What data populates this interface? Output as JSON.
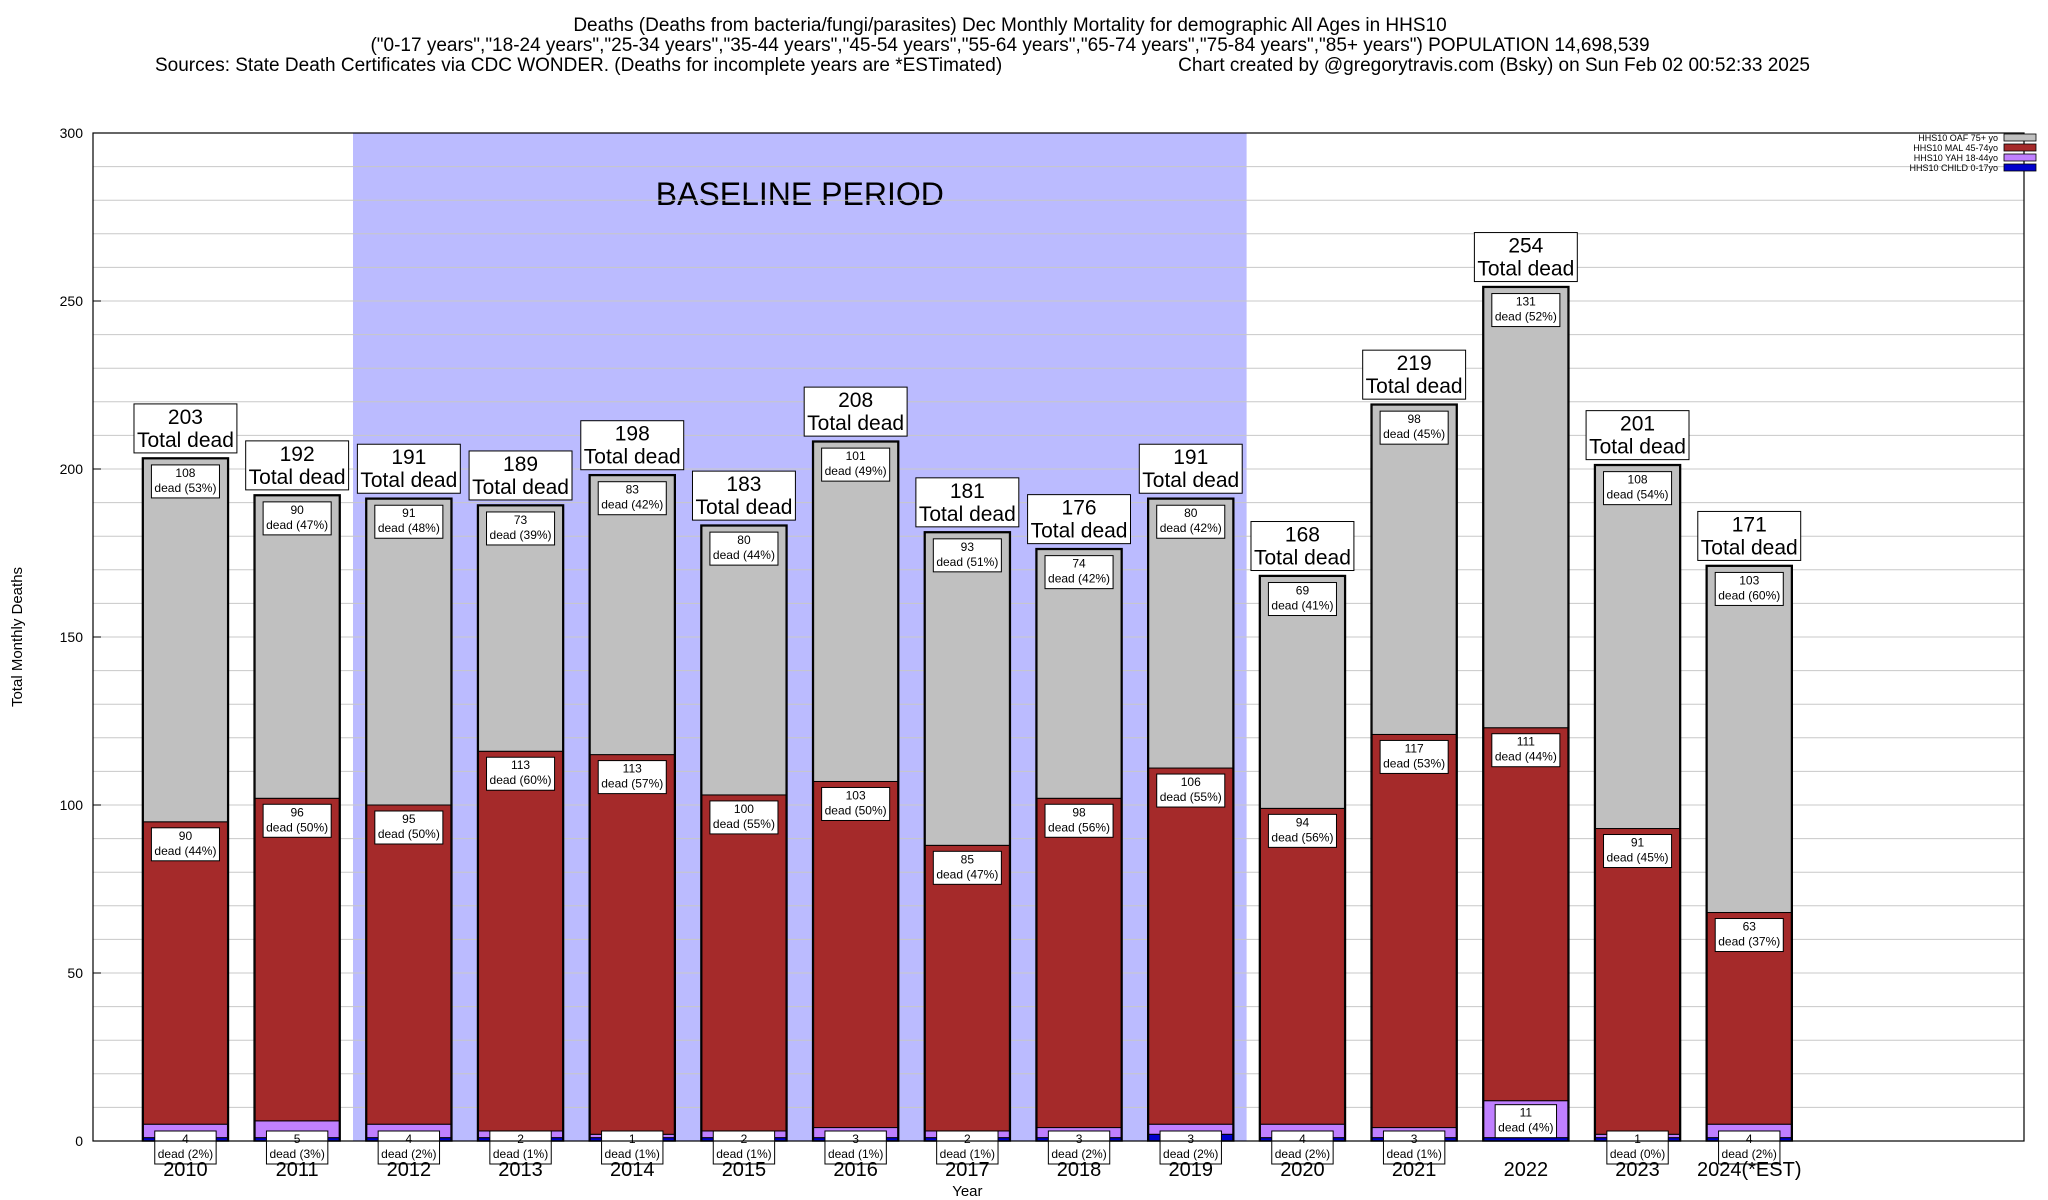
{
  "title_lines": [
    "Deaths (Deaths from bacteria/fungi/parasites) Dec Monthly Mortality for demographic All Ages in HHS10",
    "(\"0-17 years\",\"18-24 years\",\"25-34 years\",\"35-44 years\",\"45-54 years\",\"55-64 years\",\"65-74 years\",\"75-84 years\",\"85+ years\") POPULATION 14,698,539"
  ],
  "sources_text": "Sources: State Death Certificates via CDC WONDER. (Deaths for incomplete years are *ESTimated)",
  "credit_text": "Chart created by @gregorytravis.com (Bsky) on Sun Feb 02 00:52:33 2025",
  "baseline_label": "BASELINE PERIOD",
  "total_label_suffix": "Total dead",
  "colors": {
    "background_band": "#bbbbff",
    "OAF": "#c0c0c0",
    "MAL": "#a52a2a",
    "YAH": "#c080ff",
    "CHILD": "#0000cc"
  },
  "chart_data": {
    "type": "bar",
    "stacked": true,
    "xlabel": "Year",
    "ylabel": "Total Monthly Deaths",
    "ylim": [
      0,
      300
    ],
    "yticks": [
      0,
      50,
      100,
      150,
      200,
      250,
      300
    ],
    "grid": true,
    "legend_position": "top-right",
    "baseline_period": [
      "2012",
      "2019"
    ],
    "categories": [
      "2010",
      "2011",
      "2012",
      "2013",
      "2014",
      "2015",
      "2016",
      "2017",
      "2018",
      "2019",
      "2020",
      "2021",
      "2022",
      "2023",
      "2024(*EST)"
    ],
    "totals": [
      203,
      192,
      191,
      189,
      198,
      183,
      208,
      181,
      176,
      191,
      168,
      219,
      254,
      201,
      171
    ],
    "series": [
      {
        "name": "HHS10 CHILD 0-17yo",
        "key": "CHILD",
        "values": [
          1,
          1,
          1,
          1,
          1,
          1,
          1,
          1,
          1,
          2,
          1,
          1,
          1,
          1,
          1
        ]
      },
      {
        "name": "HHS10 YAH 18-44yo",
        "key": "YAH",
        "values": [
          4,
          5,
          4,
          2,
          1,
          2,
          3,
          2,
          3,
          3,
          4,
          3,
          11,
          1,
          4
        ],
        "pct": [
          "2%",
          "3%",
          "2%",
          "1%",
          "1%",
          "1%",
          "1%",
          "1%",
          "2%",
          "2%",
          "2%",
          "1%",
          "4%",
          "0%",
          "2%"
        ]
      },
      {
        "name": "HHS10 MAL 45-74yo",
        "key": "MAL",
        "values": [
          90,
          96,
          95,
          113,
          113,
          100,
          103,
          85,
          98,
          106,
          94,
          117,
          111,
          91,
          63
        ],
        "pct": [
          "44%",
          "50%",
          "50%",
          "60%",
          "57%",
          "55%",
          "50%",
          "47%",
          "56%",
          "55%",
          "56%",
          "53%",
          "44%",
          "45%",
          "37%"
        ]
      },
      {
        "name": "HHS10 OAF 75+ yo",
        "key": "OAF",
        "values": [
          108,
          90,
          91,
          73,
          83,
          80,
          101,
          93,
          74,
          80,
          69,
          98,
          131,
          108,
          103
        ],
        "pct": [
          "53%",
          "47%",
          "48%",
          "39%",
          "42%",
          "44%",
          "49%",
          "51%",
          "42%",
          "42%",
          "41%",
          "45%",
          "52%",
          "54%",
          "60%"
        ]
      }
    ],
    "legend_order": [
      "OAF",
      "MAL",
      "YAH",
      "CHILD"
    ]
  }
}
